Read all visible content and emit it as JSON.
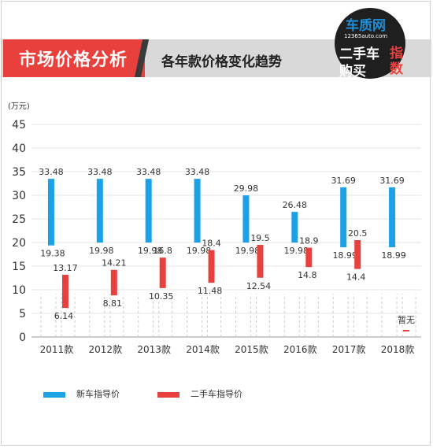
{
  "header": {
    "title": "市场价格分析",
    "subtitle": "各年款价格变化趋势"
  },
  "logo": {
    "brand": "车质网",
    "url": "12365auto.com",
    "line1": "二手车",
    "line2": "购买",
    "side": "指数"
  },
  "colors": {
    "new": "#1da1e6",
    "used": "#e8413d",
    "header_red": "#e8413d",
    "header_gray": "#d9d9d9"
  },
  "chart_data": {
    "type": "bar",
    "subtype": "floating-range",
    "yunit": "(万元)",
    "ylim": [
      0,
      45
    ],
    "yticks": [
      0,
      5,
      10,
      15,
      20,
      25,
      30,
      35,
      40,
      45
    ],
    "grid": true,
    "legend_position": "bottom-left",
    "categories": [
      "2011款",
      "2012款",
      "2013款",
      "2014款",
      "2015款",
      "2016款",
      "2017款",
      "2018款"
    ],
    "series": [
      {
        "name": "新车指导价",
        "high": [
          33.48,
          33.48,
          33.48,
          33.48,
          29.98,
          26.48,
          31.69,
          31.69
        ],
        "low": [
          19.38,
          19.98,
          19.98,
          19.98,
          19.98,
          19.98,
          18.99,
          18.99
        ],
        "high_labels": [
          "33.48",
          "33.48",
          "33.48",
          "33.48",
          "29.98",
          "26.48",
          "31.69",
          "31.69"
        ],
        "low_labels": [
          "19.38",
          "19.98",
          "19.98",
          "19.98",
          "19.98",
          "19.98",
          "18.99",
          "18.99"
        ]
      },
      {
        "name": "二手车指导价",
        "high": [
          13.17,
          14.21,
          16.8,
          18.4,
          19.5,
          18.9,
          20.5,
          null
        ],
        "low": [
          6.14,
          8.81,
          10.35,
          11.48,
          12.54,
          14.8,
          14.4,
          null
        ],
        "high_labels": [
          "13.17",
          "14.21",
          "16.8",
          "18.4",
          "19.5",
          "18.9",
          "20.5",
          ""
        ],
        "low_labels": [
          "6.14",
          "8.81",
          "10.35",
          "11.48",
          "12.54",
          "14.8",
          "14.4",
          ""
        ],
        "missing_label": "暂无"
      }
    ]
  }
}
